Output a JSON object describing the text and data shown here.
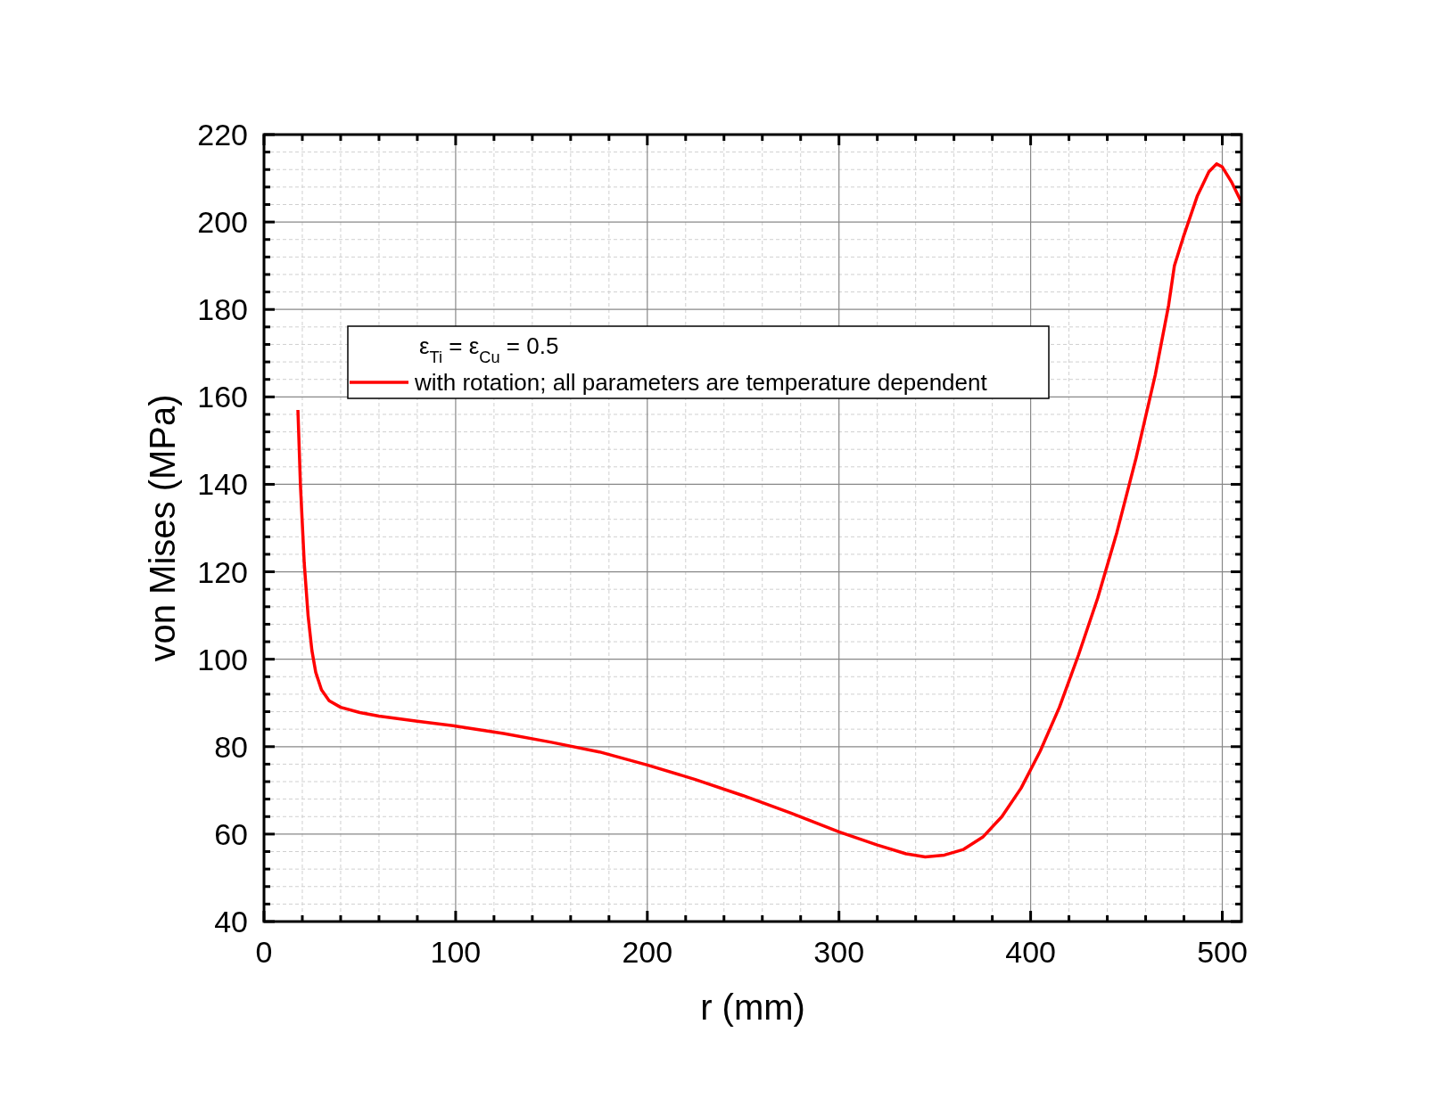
{
  "chart_data": {
    "type": "line",
    "xlabel": "r (mm)",
    "ylabel": "von Mises (MPa)",
    "legend_title": "ε$_{Ti}$ = ε$_{Cu}$ = 0.5",
    "legend": "top left",
    "grid": true,
    "xlim": [
      0,
      510
    ],
    "ylim": [
      40,
      220
    ],
    "xticks": [
      0,
      100,
      200,
      300,
      400,
      500
    ],
    "yticks": [
      40,
      60,
      80,
      100,
      120,
      140,
      160,
      180,
      200,
      220
    ],
    "x": [
      17.7,
      19,
      21,
      23,
      25,
      27,
      30,
      34,
      40,
      50,
      60,
      80,
      100,
      125,
      150,
      175,
      200,
      225,
      250,
      275,
      300,
      320,
      335,
      345,
      355,
      365,
      375,
      385,
      395,
      405,
      415,
      425,
      435,
      445,
      455,
      465,
      472,
      475,
      480,
      487,
      493,
      497,
      500,
      505,
      510
    ],
    "series": [
      {
        "name": "with rotation; all parameters are temperature dependent",
        "color": "#ff0000",
        "values": [
          157,
          140,
          122,
          110,
          102,
          97,
          93,
          90.5,
          89,
          87.8,
          87,
          85.8,
          84.7,
          83,
          81,
          78.8,
          75.8,
          72.5,
          68.8,
          64.8,
          60.5,
          57.5,
          55.5,
          54.8,
          55.2,
          56.5,
          59.3,
          64,
          70.5,
          79,
          89,
          101,
          114,
          129,
          146,
          165,
          181,
          190,
          197,
          206,
          211.5,
          213.3,
          212.6,
          209,
          204.5
        ]
      }
    ]
  }
}
